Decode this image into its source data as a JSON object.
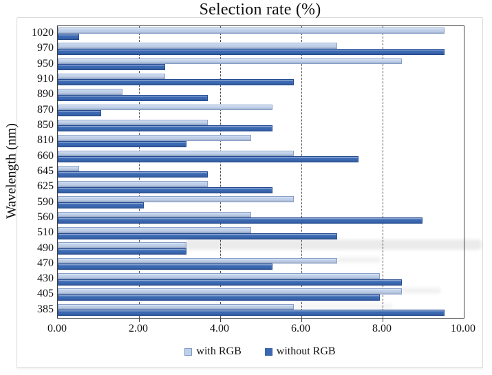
{
  "title": "Selection rate (%)",
  "axes": {
    "y_label": "Wavelength (nm)",
    "x_tick_labels": [
      "0.00",
      "2.00",
      "4.00",
      "6.00",
      "8.00",
      "10.00"
    ],
    "x_max": 10
  },
  "legend": [
    {
      "label": "with RGB",
      "color": "#BECFE9"
    },
    {
      "label": "without RGB",
      "color": "#3A68B2"
    }
  ],
  "colors": {
    "bar_light": "#BECFE9",
    "bar_dark": "#3A68B2",
    "plot_border": "#404040",
    "gridline": "#4D4D4D",
    "frame_border": "#DADADA",
    "text": "#111111"
  },
  "chart_data": {
    "type": "bar",
    "orientation": "horizontal",
    "title": "Selection rate (%)",
    "ylabel": "Wavelength (nm)",
    "xlabel": "Selection rate (%)",
    "xlim": [
      0,
      10
    ],
    "x_tick_labels": [
      "0.00",
      "2.00",
      "4.00",
      "6.00",
      "8.00",
      "10.00"
    ],
    "grid": {
      "x_lines": [
        2,
        4,
        6,
        8
      ],
      "style": "dashed"
    },
    "legend_position": "bottom",
    "categories": [
      "1020",
      "970",
      "950",
      "910",
      "890",
      "870",
      "850",
      "810",
      "660",
      "645",
      "625",
      "590",
      "560",
      "510",
      "490",
      "470",
      "430",
      "405",
      "385"
    ],
    "series": [
      {
        "name": "with RGB",
        "color": "#BECFE9",
        "values": [
          9.52,
          6.88,
          8.47,
          2.65,
          1.59,
          5.29,
          3.7,
          4.76,
          5.82,
          0.53,
          3.7,
          5.82,
          4.76,
          4.76,
          3.17,
          6.88,
          7.94,
          8.47,
          5.82
        ]
      },
      {
        "name": "without RGB",
        "color": "#3A68B2",
        "values": [
          0.53,
          9.52,
          2.65,
          5.82,
          3.7,
          1.06,
          5.29,
          3.17,
          7.41,
          3.7,
          5.29,
          2.12,
          8.99,
          6.88,
          3.17,
          5.29,
          8.47,
          7.94,
          9.52
        ]
      }
    ]
  }
}
